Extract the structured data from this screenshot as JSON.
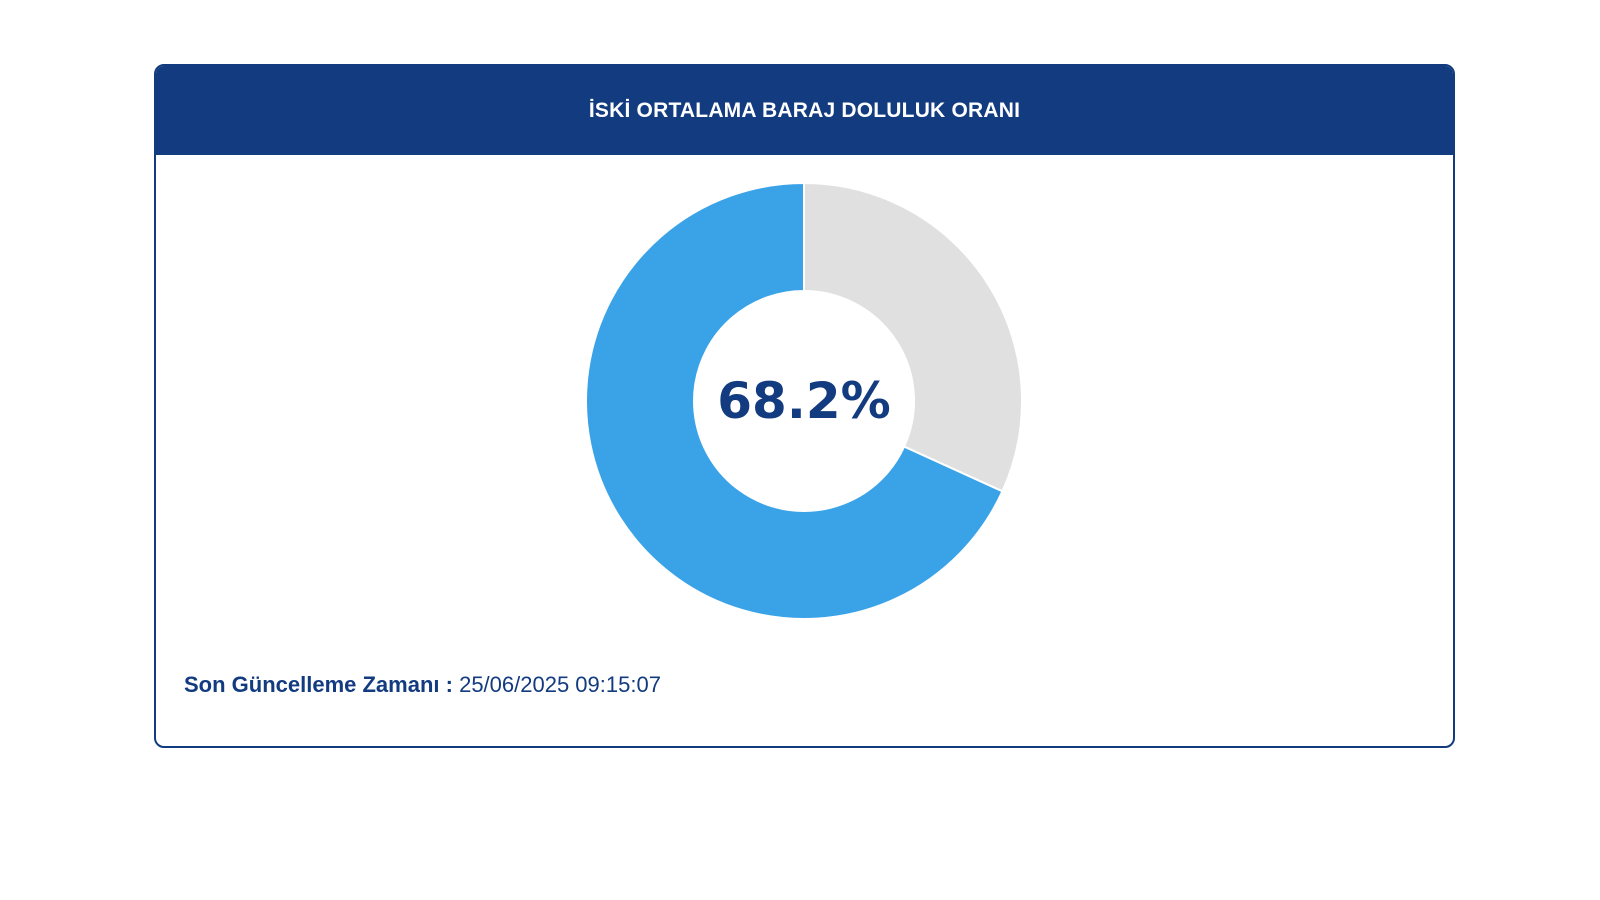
{
  "card": {
    "title": "İSKİ ORTALAMA BARAJ DOLULUK ORANI",
    "center_value": "68.2%",
    "footer_label": "Son Güncelleme Zamanı :",
    "footer_value": "25/06/2025 09:15:07"
  },
  "colors": {
    "header": "#123b80",
    "filled": "#3aa3e8",
    "empty": "#e0e0e0",
    "text": "#123b80"
  },
  "chart_data": {
    "type": "pie",
    "title": "İSKİ ORTALAMA BARAJ DOLULUK ORANI",
    "donut": true,
    "slices": [
      {
        "value": 68.2,
        "color": "#3aa3e8"
      },
      {
        "value": 31.8,
        "color": "#e0e0e0"
      }
    ],
    "center_label": "68.2%"
  }
}
